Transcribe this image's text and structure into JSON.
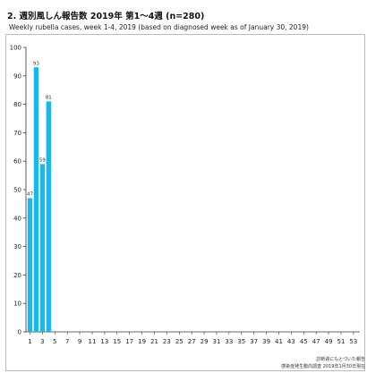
{
  "header": {
    "title": "2. 週別風しん報告数  2019年 第1～4週 (n=280)",
    "subtitle": "Weekly rubella cases, week 1-4, 2019 (based on diagnosed week as of January 30, 2019)"
  },
  "notes": {
    "line1": "診断週にもとづいた報告",
    "line2": "感染症発生動向調査 2019年1月30日現在"
  },
  "colors": {
    "bar": "#1ab7ea",
    "axis": "#333333"
  },
  "chart_data": {
    "type": "bar",
    "title": "2. 週別風しん報告数  2019年 第1～4週 (n=280)",
    "subtitle": "Weekly rubella cases, week 1-4, 2019 (based on diagnosed week as of January 30, 2019)",
    "x": [
      1,
      2,
      3,
      4
    ],
    "values": [
      47,
      93,
      59,
      81
    ],
    "data_labels": [
      "47",
      "93",
      "59",
      "81"
    ],
    "xlim": [
      1,
      52
    ],
    "x_ticks": [
      "1",
      "3",
      "5",
      "7",
      "9",
      "11",
      "13",
      "15",
      "17",
      "19",
      "21",
      "23",
      "25",
      "27",
      "29",
      "31",
      "33",
      "35",
      "37",
      "39",
      "41",
      "43",
      "45",
      "47",
      "49",
      "51",
      "53"
    ],
    "ylim": [
      0,
      100
    ],
    "y_ticks": [
      "0",
      "10",
      "20",
      "30",
      "40",
      "50",
      "60",
      "70",
      "80",
      "90",
      "100"
    ],
    "grid": false,
    "legend": "none"
  }
}
